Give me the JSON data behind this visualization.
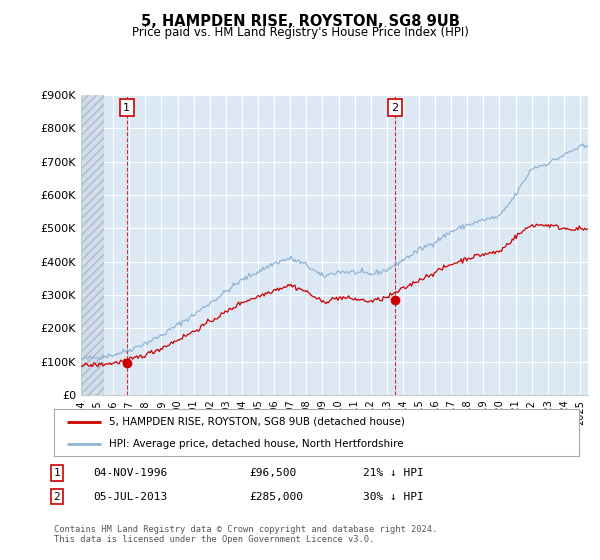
{
  "title": "5, HAMPDEN RISE, ROYSTON, SG8 9UB",
  "subtitle": "Price paid vs. HM Land Registry's House Price Index (HPI)",
  "ylim": [
    0,
    900000
  ],
  "yticks": [
    0,
    100000,
    200000,
    300000,
    400000,
    500000,
    600000,
    700000,
    800000,
    900000
  ],
  "ytick_labels": [
    "£0",
    "£100K",
    "£200K",
    "£300K",
    "£400K",
    "£500K",
    "£600K",
    "£700K",
    "£800K",
    "£900K"
  ],
  "hpi_color": "#92b4d4",
  "price_color": "#cc0000",
  "background_color": "#ffffff",
  "plot_bg_color": "#dce9f5",
  "grid_color": "#ffffff",
  "purchase1_x": 1996.84,
  "purchase1_y": 96500,
  "purchase2_x": 2013.5,
  "purchase2_y": 285000,
  "legend_entry1": "5, HAMPDEN RISE, ROYSTON, SG8 9UB (detached house)",
  "legend_entry2": "HPI: Average price, detached house, North Hertfordshire",
  "annotation1": [
    "1",
    "04-NOV-1996",
    "£96,500",
    "21% ↓ HPI"
  ],
  "annotation2": [
    "2",
    "05-JUL-2013",
    "£285,000",
    "30% ↓ HPI"
  ],
  "footer": "Contains HM Land Registry data © Crown copyright and database right 2024.\nThis data is licensed under the Open Government Licence v3.0.",
  "xlim_left": 1994.0,
  "xlim_right": 2025.5,
  "xtick_years": [
    1994,
    1995,
    1996,
    1997,
    1998,
    1999,
    2000,
    2001,
    2002,
    2003,
    2004,
    2005,
    2006,
    2007,
    2008,
    2009,
    2010,
    2011,
    2012,
    2013,
    2014,
    2015,
    2016,
    2017,
    2018,
    2019,
    2020,
    2021,
    2022,
    2023,
    2024,
    2025
  ]
}
